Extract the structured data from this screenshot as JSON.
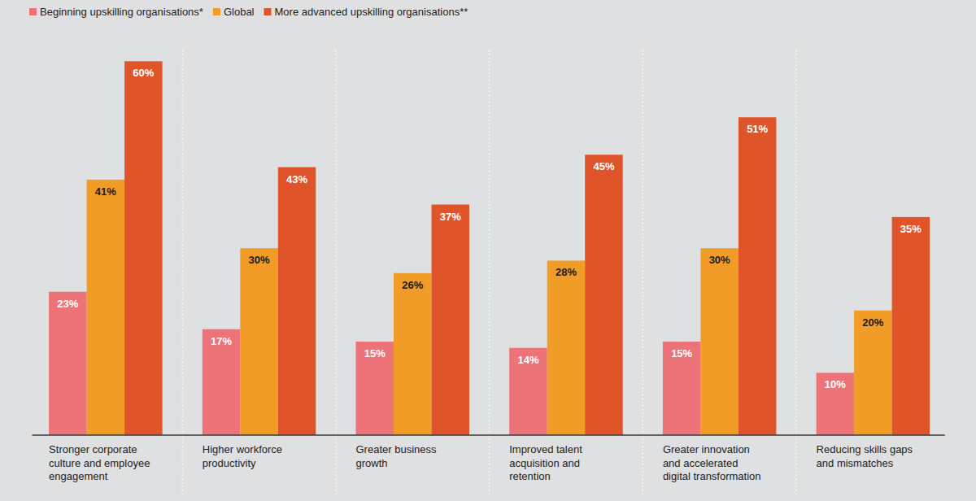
{
  "chart_data": {
    "type": "bar",
    "categories": [
      "Stronger corporate\nculture and employee\nengagement",
      "Higher workforce\nproductivity",
      "Greater business\ngrowth",
      "Improved talent\nacquisition and\nretention",
      "Greater innovation\nand accelerated\ndigital transformation",
      "Reducing skills gaps\nand mismatches"
    ],
    "series": [
      {
        "name": "Beginning upskilling organisations*",
        "color": "#ec7378",
        "values": [
          23,
          17,
          15,
          14,
          15,
          10
        ],
        "value_labels": [
          "23%",
          "17%",
          "15%",
          "14%",
          "15%",
          "10%"
        ]
      },
      {
        "name": "Global",
        "color": "#f29c28",
        "values": [
          41,
          30,
          26,
          28,
          30,
          20
        ],
        "value_labels": [
          "41%",
          "30%",
          "26%",
          "28%",
          "30%",
          "20%"
        ]
      },
      {
        "name": "More advanced upskilling organisations**",
        "color": "#e05429",
        "values": [
          60,
          43,
          37,
          45,
          51,
          35
        ],
        "value_labels": [
          "60%",
          "43%",
          "37%",
          "45%",
          "51%",
          "35%"
        ]
      }
    ],
    "ylim": [
      0,
      65
    ],
    "grid": false,
    "legend": "top-left",
    "data_labels": true,
    "tick_labels": "x"
  }
}
